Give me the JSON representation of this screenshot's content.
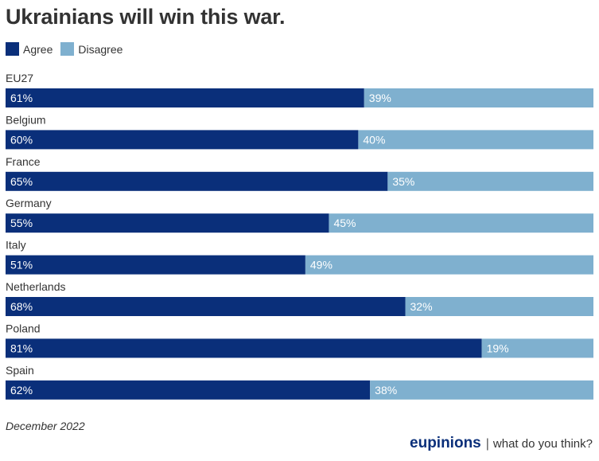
{
  "chart_data": {
    "type": "bar",
    "orientation": "horizontal",
    "stacked": true,
    "title": "Ukrainians will win this war.",
    "categories": [
      "EU27",
      "Belgium",
      "France",
      "Germany",
      "Italy",
      "Netherlands",
      "Poland",
      "Spain"
    ],
    "series": [
      {
        "name": "Agree",
        "color": "#0a2f7a",
        "values": [
          61,
          60,
          65,
          55,
          51,
          68,
          81,
          62
        ]
      },
      {
        "name": "Disagree",
        "color": "#7fb0cf",
        "values": [
          39,
          40,
          35,
          45,
          49,
          32,
          19,
          38
        ]
      }
    ],
    "value_suffix": "%",
    "xlim": [
      0,
      100
    ],
    "grid": false,
    "legend_position": "top-left"
  },
  "footer": {
    "note": "December 2022",
    "brand_name": "eupinions",
    "brand_separator": "|",
    "brand_tagline": "what do you think?"
  }
}
